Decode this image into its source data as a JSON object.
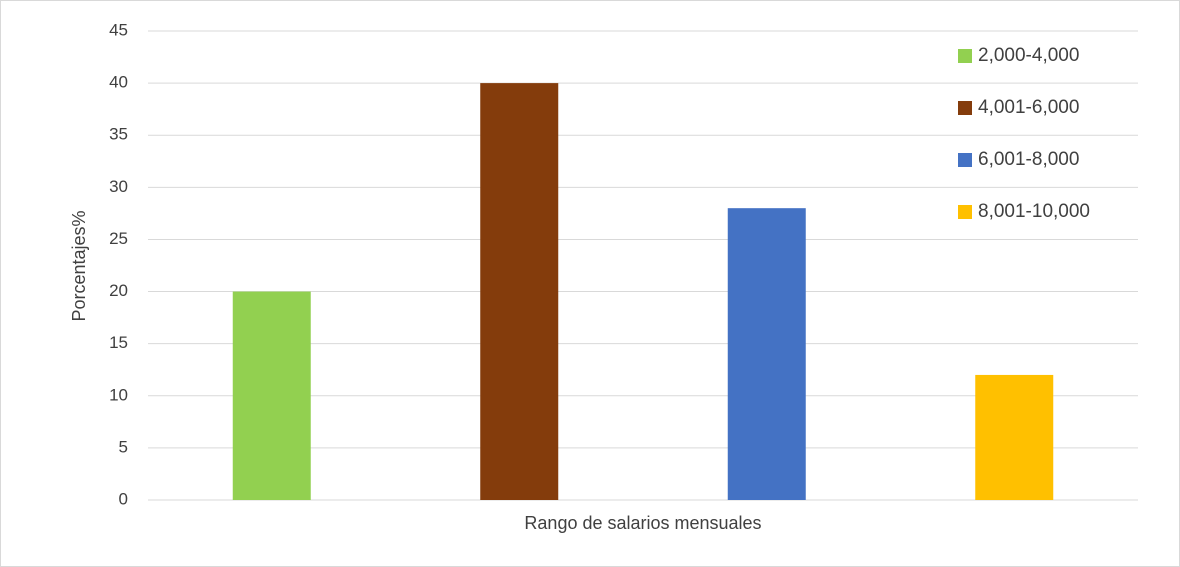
{
  "chart_data": {
    "type": "bar",
    "x_label": "Rango de salarios mensuales",
    "y_label": "Porcentajes%",
    "categories": [
      null
    ],
    "series": [
      {
        "name": "2,000-4,000",
        "color": "#92d050",
        "values": [
          20
        ]
      },
      {
        "name": "4,001-6,000",
        "color": "#843c0c",
        "values": [
          40
        ]
      },
      {
        "name": "6,001-8,000",
        "color": "#4472c4",
        "values": [
          28
        ]
      },
      {
        "name": "8,001-10,000",
        "color": "#ffc000",
        "values": [
          12
        ]
      }
    ],
    "ylim": [
      0,
      45
    ],
    "yticks": [
      0,
      5,
      10,
      15,
      20,
      25,
      30,
      35,
      40,
      45
    ],
    "grid": true,
    "legend": "upper right"
  }
}
